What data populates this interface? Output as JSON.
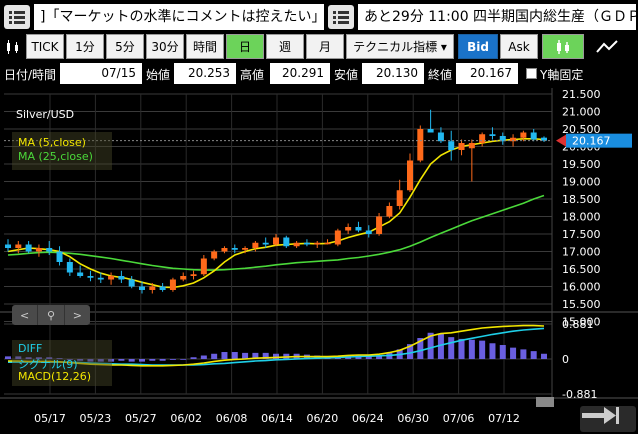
{
  "ticker": {
    "item1": "]「マーケットの水準にコメントは控えたい」",
    "item2": "あと29分 11:00 四半期国内総生産（ＧＤＰ"
  },
  "toolbar": {
    "periods": [
      "TICK",
      "1分",
      "5分",
      "30分",
      "時間",
      "日",
      "週",
      "月"
    ],
    "active_period": "日",
    "indicator_select": "テクニカル指標 ▾",
    "bid": "Bid",
    "ask": "Ask"
  },
  "ohlc": {
    "date_label": "日付/時間",
    "date": "07/15",
    "open_label": "始値",
    "open": "20.253",
    "high_label": "高値",
    "high": "20.291",
    "low_label": "安値",
    "low": "20.130",
    "close_label": "終値",
    "close": "20.167",
    "yaxis_label": "Y軸固定"
  },
  "chart": {
    "symbol": "Silver/USD",
    "legend_ma5": "MA (5,close)",
    "legend_ma25": "MA (25,close)",
    "legend_diff": "DIFF",
    "legend_signal": "シグナル(9)",
    "legend_macd": "MACD(12,26)",
    "current_price": "20.167",
    "y_ticks": [
      "21.500",
      "21.000",
      "20.500",
      "20.000",
      "19.500",
      "19.000",
      "18.500",
      "18.000",
      "17.500",
      "17.000",
      "16.500",
      "16.000",
      "15.500",
      "15.000"
    ],
    "macd_ticks": [
      "0.881",
      "0",
      "-0.881"
    ],
    "x_ticks": [
      "05/17",
      "05/23",
      "05/27",
      "06/02",
      "06/08",
      "06/14",
      "06/20",
      "06/24",
      "06/30",
      "07/06",
      "07/12"
    ],
    "colors": {
      "up": "#ff6a1a",
      "down": "#22b8f0",
      "ma5": "#f2e600",
      "ma25": "#4bd93a",
      "diff": "#1ecfe8",
      "macd": "#f2e600",
      "hist": "#6a5fe0",
      "price_tag": "#1a8ee0"
    }
  },
  "chart_data": {
    "type": "candlestick",
    "symbol": "Silver/USD",
    "ylim": [
      15.5,
      21.5
    ],
    "candles": [
      {
        "o": 17.2,
        "h": 17.35,
        "l": 17.0,
        "c": 17.1
      },
      {
        "o": 17.1,
        "h": 17.3,
        "l": 16.95,
        "c": 17.2
      },
      {
        "o": 17.2,
        "h": 17.3,
        "l": 16.95,
        "c": 17.0
      },
      {
        "o": 17.0,
        "h": 17.2,
        "l": 16.85,
        "c": 17.1
      },
      {
        "o": 17.1,
        "h": 17.3,
        "l": 16.9,
        "c": 17.0
      },
      {
        "o": 17.0,
        "h": 17.15,
        "l": 16.6,
        "c": 16.7
      },
      {
        "o": 16.7,
        "h": 16.8,
        "l": 16.3,
        "c": 16.4
      },
      {
        "o": 16.4,
        "h": 16.6,
        "l": 16.25,
        "c": 16.3
      },
      {
        "o": 16.3,
        "h": 16.45,
        "l": 16.15,
        "c": 16.25
      },
      {
        "o": 16.25,
        "h": 16.4,
        "l": 16.1,
        "c": 16.2
      },
      {
        "o": 16.2,
        "h": 16.4,
        "l": 16.05,
        "c": 16.3
      },
      {
        "o": 16.3,
        "h": 16.45,
        "l": 16.1,
        "c": 16.2
      },
      {
        "o": 16.2,
        "h": 16.3,
        "l": 15.95,
        "c": 16.0
      },
      {
        "o": 16.0,
        "h": 16.15,
        "l": 15.8,
        "c": 15.9
      },
      {
        "o": 15.9,
        "h": 16.1,
        "l": 15.8,
        "c": 16.0
      },
      {
        "o": 16.0,
        "h": 16.1,
        "l": 15.85,
        "c": 15.9
      },
      {
        "o": 15.9,
        "h": 16.25,
        "l": 15.85,
        "c": 16.2
      },
      {
        "o": 16.2,
        "h": 16.4,
        "l": 16.15,
        "c": 16.3
      },
      {
        "o": 16.3,
        "h": 16.45,
        "l": 16.2,
        "c": 16.35
      },
      {
        "o": 16.35,
        "h": 16.9,
        "l": 16.3,
        "c": 16.8
      },
      {
        "o": 16.8,
        "h": 17.05,
        "l": 16.75,
        "c": 17.0
      },
      {
        "o": 17.0,
        "h": 17.15,
        "l": 16.95,
        "c": 17.1
      },
      {
        "o": 17.1,
        "h": 17.2,
        "l": 16.95,
        "c": 17.05
      },
      {
        "o": 17.05,
        "h": 17.15,
        "l": 16.95,
        "c": 17.1
      },
      {
        "o": 17.1,
        "h": 17.3,
        "l": 17.0,
        "c": 17.25
      },
      {
        "o": 17.25,
        "h": 17.4,
        "l": 17.1,
        "c": 17.2
      },
      {
        "o": 17.2,
        "h": 17.5,
        "l": 17.15,
        "c": 17.4
      },
      {
        "o": 17.4,
        "h": 17.45,
        "l": 17.1,
        "c": 17.15
      },
      {
        "o": 17.15,
        "h": 17.3,
        "l": 17.1,
        "c": 17.25
      },
      {
        "o": 17.25,
        "h": 17.35,
        "l": 17.15,
        "c": 17.2
      },
      {
        "o": 17.2,
        "h": 17.3,
        "l": 17.1,
        "c": 17.25
      },
      {
        "o": 17.25,
        "h": 17.35,
        "l": 17.2,
        "c": 17.25
      },
      {
        "o": 17.2,
        "h": 17.65,
        "l": 17.15,
        "c": 17.6
      },
      {
        "o": 17.6,
        "h": 17.8,
        "l": 17.5,
        "c": 17.7
      },
      {
        "o": 17.7,
        "h": 17.85,
        "l": 17.55,
        "c": 17.6
      },
      {
        "o": 17.6,
        "h": 17.75,
        "l": 17.4,
        "c": 17.5
      },
      {
        "o": 17.5,
        "h": 18.1,
        "l": 17.45,
        "c": 18.0
      },
      {
        "o": 18.0,
        "h": 18.4,
        "l": 17.95,
        "c": 18.3
      },
      {
        "o": 18.3,
        "h": 19.05,
        "l": 18.2,
        "c": 18.75
      },
      {
        "o": 18.75,
        "h": 19.8,
        "l": 18.7,
        "c": 19.6
      },
      {
        "o": 19.6,
        "h": 20.6,
        "l": 19.55,
        "c": 20.5
      },
      {
        "o": 20.5,
        "h": 21.05,
        "l": 20.4,
        "c": 20.4
      },
      {
        "o": 20.4,
        "h": 20.55,
        "l": 20.1,
        "c": 20.15
      },
      {
        "o": 20.15,
        "h": 20.45,
        "l": 19.6,
        "c": 19.9
      },
      {
        "o": 19.9,
        "h": 20.2,
        "l": 19.75,
        "c": 20.1
      },
      {
        "o": 19.95,
        "h": 20.2,
        "l": 19.0,
        "c": 20.1
      },
      {
        "o": 20.1,
        "h": 20.4,
        "l": 20.0,
        "c": 20.35
      },
      {
        "o": 20.35,
        "h": 20.55,
        "l": 20.2,
        "c": 20.3
      },
      {
        "o": 20.3,
        "h": 20.4,
        "l": 20.05,
        "c": 20.15
      },
      {
        "o": 20.15,
        "h": 20.35,
        "l": 20.0,
        "c": 20.25
      },
      {
        "o": 20.25,
        "h": 20.45,
        "l": 20.15,
        "c": 20.4
      },
      {
        "o": 20.4,
        "h": 20.5,
        "l": 20.15,
        "c": 20.2
      },
      {
        "o": 20.253,
        "h": 20.291,
        "l": 20.13,
        "c": 20.167
      }
    ],
    "x_tick_labels": [
      "05/17",
      "05/23",
      "05/27",
      "06/02",
      "06/08",
      "06/14",
      "06/20",
      "06/24",
      "06/30",
      "07/06",
      "07/12"
    ],
    "ma5": [
      17.0,
      17.05,
      17.1,
      17.08,
      17.05,
      17.0,
      16.85,
      16.65,
      16.5,
      16.38,
      16.3,
      16.26,
      16.2,
      16.12,
      16.05,
      15.98,
      15.97,
      16.02,
      16.1,
      16.25,
      16.45,
      16.7,
      16.9,
      17.0,
      17.08,
      17.12,
      17.18,
      17.2,
      17.22,
      17.23,
      17.22,
      17.23,
      17.3,
      17.4,
      17.48,
      17.55,
      17.7,
      17.85,
      18.1,
      18.55,
      19.05,
      19.5,
      19.75,
      19.9,
      20.0,
      20.05,
      20.1,
      20.15,
      20.18,
      20.2,
      20.22,
      20.22,
      20.2
    ],
    "ma25": [
      16.9,
      16.92,
      16.95,
      16.97,
      16.98,
      16.97,
      16.95,
      16.92,
      16.88,
      16.84,
      16.8,
      16.75,
      16.7,
      16.65,
      16.6,
      16.56,
      16.52,
      16.5,
      16.48,
      16.47,
      16.47,
      16.48,
      16.5,
      16.52,
      16.55,
      16.58,
      16.62,
      16.65,
      16.68,
      16.7,
      16.72,
      16.74,
      16.76,
      16.8,
      16.83,
      16.87,
      16.92,
      16.98,
      17.05,
      17.15,
      17.27,
      17.4,
      17.52,
      17.64,
      17.76,
      17.88,
      17.98,
      18.08,
      18.18,
      18.28,
      18.38,
      18.5,
      18.6
    ],
    "macd_ylim": [
      -0.881,
      0.881
    ],
    "macd": [
      -0.05,
      -0.05,
      -0.06,
      -0.06,
      -0.06,
      -0.07,
      -0.09,
      -0.11,
      -0.13,
      -0.14,
      -0.15,
      -0.15,
      -0.16,
      -0.17,
      -0.17,
      -0.17,
      -0.16,
      -0.15,
      -0.13,
      -0.1,
      -0.06,
      -0.03,
      -0.01,
      0.0,
      0.02,
      0.03,
      0.04,
      0.05,
      0.06,
      0.06,
      0.06,
      0.06,
      0.07,
      0.09,
      0.1,
      0.1,
      0.12,
      0.16,
      0.22,
      0.32,
      0.45,
      0.58,
      0.64,
      0.66,
      0.7,
      0.74,
      0.78,
      0.8,
      0.82,
      0.83,
      0.84,
      0.84,
      0.83
    ],
    "signal": [
      -0.08,
      -0.08,
      -0.08,
      -0.08,
      -0.08,
      -0.08,
      -0.08,
      -0.09,
      -0.1,
      -0.11,
      -0.12,
      -0.13,
      -0.13,
      -0.14,
      -0.15,
      -0.15,
      -0.15,
      -0.15,
      -0.15,
      -0.14,
      -0.12,
      -0.11,
      -0.09,
      -0.07,
      -0.05,
      -0.04,
      -0.02,
      -0.01,
      0.0,
      0.01,
      0.02,
      0.03,
      0.04,
      0.05,
      0.06,
      0.07,
      0.08,
      0.09,
      0.11,
      0.15,
      0.21,
      0.28,
      0.35,
      0.41,
      0.47,
      0.52,
      0.57,
      0.62,
      0.66,
      0.7,
      0.73,
      0.75,
      0.77
    ]
  }
}
